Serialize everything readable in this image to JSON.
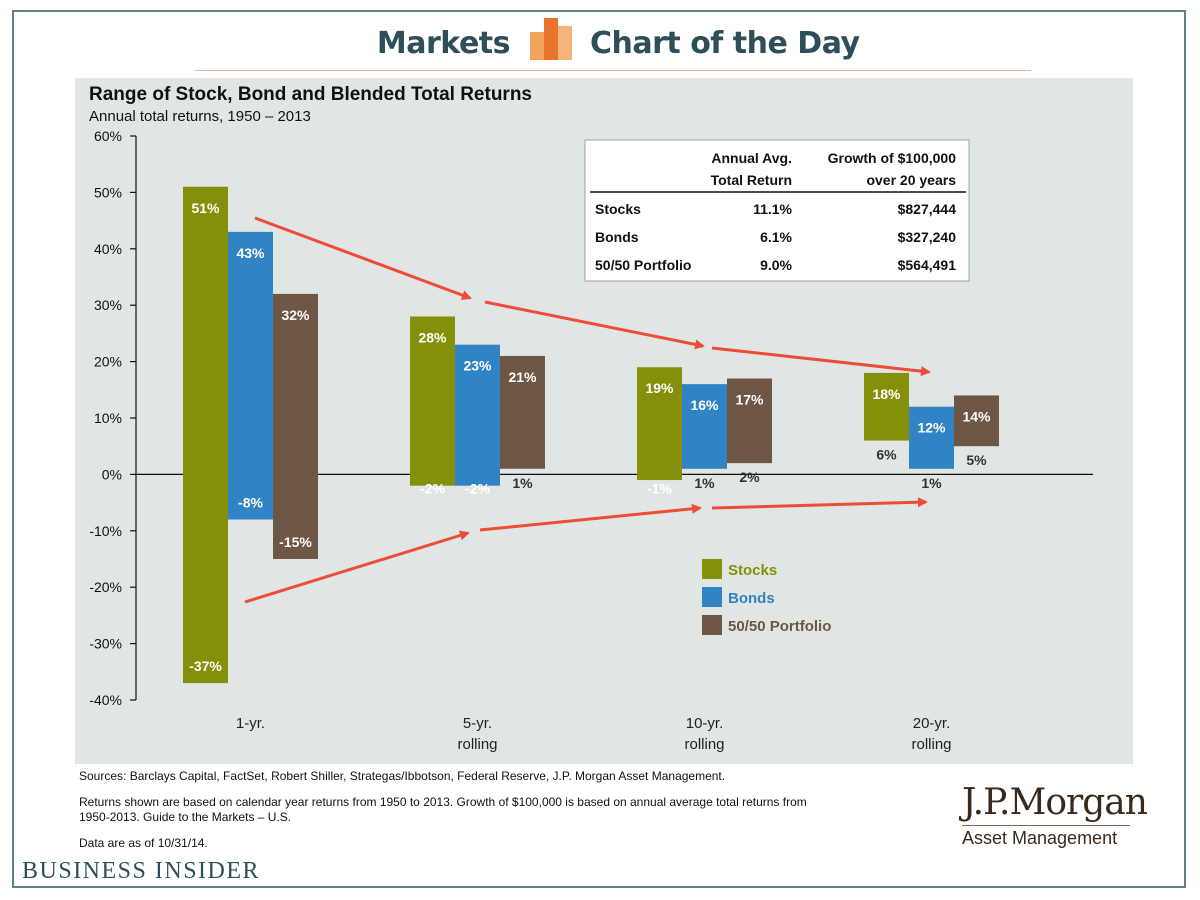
{
  "header": {
    "left_label": "Markets",
    "right_label": "Chart of the Day",
    "logo_colors": [
      "#f2a25a",
      "#e8742c",
      "#f5b47a"
    ]
  },
  "chart_data": {
    "type": "bar",
    "title": "Range of Stock, Bond and Blended Total Returns",
    "subtitle": "Annual total returns, 1950 – 2013",
    "categories": [
      {
        "line1": "1-yr.",
        "line2": ""
      },
      {
        "line1": "5-yr.",
        "line2": "rolling"
      },
      {
        "line1": "10-yr.",
        "line2": "rolling"
      },
      {
        "line1": "20-yr.",
        "line2": "rolling"
      }
    ],
    "series": [
      {
        "name": "Stocks",
        "color": "#849009",
        "high": [
          51,
          28,
          19,
          18
        ],
        "low": [
          -37,
          -2,
          -1,
          6
        ],
        "high_labels": [
          "51%",
          "28%",
          "19%",
          "18%"
        ],
        "low_labels": [
          "-37%",
          "-2%",
          "-1%",
          "6%"
        ]
      },
      {
        "name": "Bonds",
        "color": "#3083c5",
        "high": [
          43,
          23,
          16,
          12
        ],
        "low": [
          -8,
          -2,
          1,
          1
        ],
        "high_labels": [
          "43%",
          "23%",
          "16%",
          "12%"
        ],
        "low_labels": [
          "-8%",
          "-2%",
          "1%",
          "1%"
        ]
      },
      {
        "name": "50/50 Portfolio",
        "color": "#6e5645",
        "high": [
          32,
          21,
          17,
          14
        ],
        "low": [
          -15,
          1,
          2,
          5
        ],
        "high_labels": [
          "32%",
          "21%",
          "17%",
          "14%"
        ],
        "low_labels": [
          "-15%",
          "1%",
          "2%",
          "5%"
        ]
      }
    ],
    "ylim": [
      -40,
      60
    ],
    "yticks": [
      60,
      50,
      40,
      30,
      20,
      10,
      0,
      -10,
      -20,
      -30,
      -40
    ],
    "ytick_labels": [
      "60%",
      "50%",
      "40%",
      "30%",
      "20%",
      "10%",
      "0%",
      "-10%",
      "-20%",
      "-30%",
      "-40%"
    ],
    "legend_position": "center-right",
    "arrow_color": "#ee4c36"
  },
  "table": {
    "header1_line1": "Annual Avg.",
    "header1_line2": "Total Return",
    "header2_line1": "Growth of $100,000",
    "header2_line2": "over 20 years",
    "rows": [
      {
        "label": "Stocks",
        "avg": "11.1%",
        "growth": "$827,444"
      },
      {
        "label": "Bonds",
        "avg": "6.1%",
        "growth": "$327,240"
      },
      {
        "label": "50/50 Portfolio",
        "avg": "9.0%",
        "growth": "$564,491"
      }
    ]
  },
  "footer": {
    "sources": "Sources: Barclays Capital, FactSet, Robert Shiller, Strategas/Ibbotson, Federal Reserve, J.P. Morgan Asset Management.",
    "note_line1": "Returns shown are based on calendar year returns from 1950 to 2013. Growth of $100,000 is based on annual average total returns from",
    "note_line2": "1950-2013. Guide to the Markets – U.S.",
    "data_as_of": "Data are as of 10/31/14.",
    "jpm_logo": "J.P.Morgan",
    "jpm_sub": "Asset Management",
    "publisher": "BUSINESS INSIDER"
  }
}
